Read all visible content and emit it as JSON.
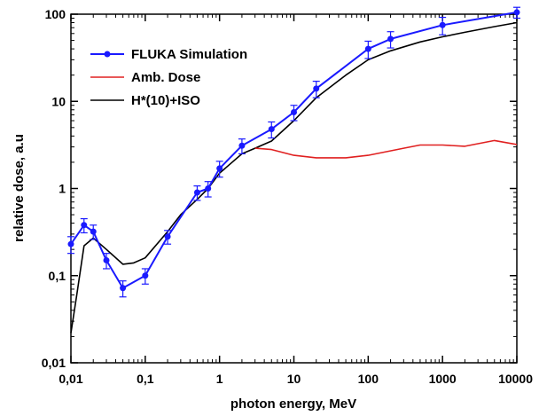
{
  "chart_data": {
    "type": "line",
    "xlabel": "photon energy, MeV",
    "ylabel": "relative dose, a.u",
    "xscale": "log",
    "yscale": "log",
    "xlim": [
      0.01,
      10000
    ],
    "ylim": [
      0.01,
      100
    ],
    "x_ticks": [
      0.01,
      0.1,
      1,
      10,
      100,
      1000,
      10000
    ],
    "x_tick_labels": [
      "0,01",
      "0,1",
      "1",
      "10",
      "100",
      "1000",
      "10000"
    ],
    "y_ticks": [
      0.01,
      0.1,
      1,
      10,
      100
    ],
    "y_tick_labels": [
      "0,01",
      "0,1",
      "1",
      "10",
      "100"
    ],
    "grid": false,
    "legend_position": "top-left",
    "series": [
      {
        "name": "FLUKA Simulation",
        "color": "#1a1aff",
        "marker": "circle",
        "x": [
          0.01,
          0.015,
          0.02,
          0.03,
          0.05,
          0.1,
          0.2,
          0.5,
          0.7,
          1,
          2,
          5,
          10,
          20,
          100,
          200,
          1000,
          10000
        ],
        "y": [
          0.23,
          0.38,
          0.32,
          0.15,
          0.072,
          0.1,
          0.28,
          0.9,
          1.0,
          1.7,
          3.1,
          4.8,
          7.5,
          14,
          40,
          52,
          75,
          105
        ],
        "error": [
          0.05,
          0.07,
          0.06,
          0.03,
          0.015,
          0.02,
          0.05,
          0.17,
          0.2,
          0.35,
          0.6,
          1.0,
          1.5,
          3,
          9,
          11,
          17,
          15
        ]
      },
      {
        "name": "Amb. Dose",
        "color": "#e02020",
        "x": [
          3,
          5,
          10,
          20,
          50,
          100,
          300,
          500,
          1000,
          2000,
          5000,
          10000
        ],
        "y": [
          2.9,
          2.8,
          2.4,
          2.25,
          2.25,
          2.4,
          2.9,
          3.15,
          3.15,
          3.05,
          3.55,
          3.2
        ]
      },
      {
        "name": "H*(10)+ISO",
        "color": "#000000",
        "x": [
          0.01,
          0.012,
          0.015,
          0.02,
          0.03,
          0.05,
          0.07,
          0.1,
          0.2,
          0.3,
          0.5,
          0.7,
          1,
          2,
          3,
          5,
          10,
          20,
          50,
          100,
          200,
          500,
          1000,
          2000,
          5000,
          10000
        ],
        "y": [
          0.022,
          0.06,
          0.22,
          0.27,
          0.2,
          0.135,
          0.14,
          0.16,
          0.32,
          0.5,
          0.75,
          1.0,
          1.5,
          2.5,
          2.9,
          3.5,
          6,
          11,
          20,
          30,
          38,
          48,
          55,
          62,
          72,
          80
        ]
      }
    ]
  }
}
